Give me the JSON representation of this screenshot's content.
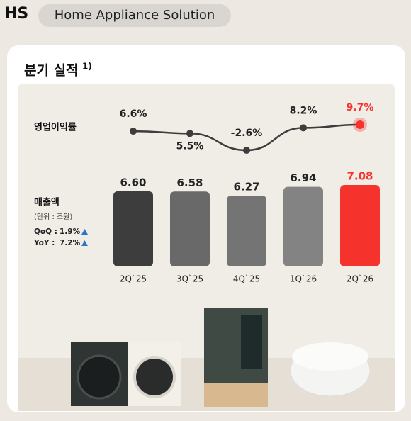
{
  "header": {
    "segment": "HS",
    "name": "Home Appliance Solution"
  },
  "card_title": "분기 실적",
  "footnote_mark": "1)",
  "chart_data": {
    "type": "combo",
    "categories": [
      "2Q`25",
      "3Q`25",
      "4Q`25",
      "1Q`26",
      "2Q`26"
    ],
    "series": [
      {
        "name": "영업이익률",
        "type": "line",
        "color": "#3d3d3d",
        "highlight_color": "#f5322b",
        "values": [
          6.6,
          5.5,
          -2.6,
          8.2,
          9.7
        ],
        "value_labels": [
          "6.6%",
          "5.5%",
          "-2.6%",
          "8.2%",
          "9.7%"
        ]
      },
      {
        "name": "매출액",
        "type": "bar",
        "unit": "(단위 : 조원)",
        "colors": [
          "#3d3d3d",
          "#696969",
          "#747474",
          "#838383",
          "#f5322b"
        ],
        "values": [
          6.6,
          6.58,
          6.27,
          6.94,
          7.08
        ],
        "value_labels": [
          "6.60",
          "6.58",
          "6.27",
          "6.94",
          "7.08"
        ]
      }
    ],
    "growth": [
      {
        "label": "QoQ :",
        "value_label": "1.9%"
      },
      {
        "label": "YoY :",
        "value_label": "7.2%"
      }
    ]
  }
}
